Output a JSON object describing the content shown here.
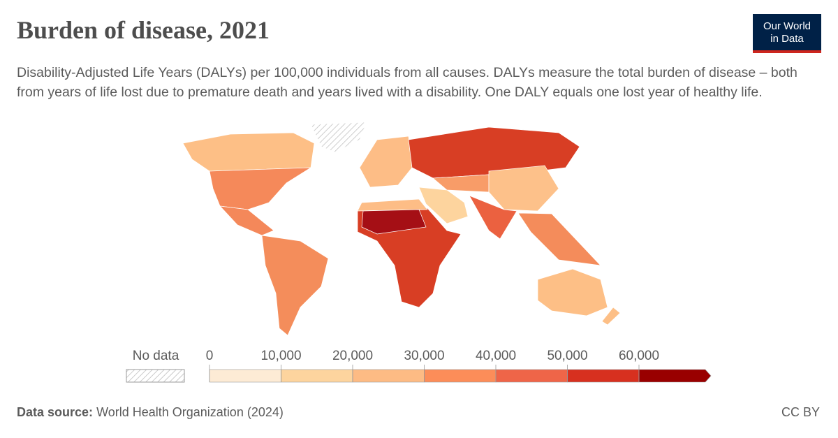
{
  "header": {
    "title": "Burden of disease, 2021",
    "subtitle": "Disability-Adjusted Life Years (DALYs) per 100,000 individuals from all causes. DALYs measure the total burden of disease – both from years of life lost due to premature death and years lived with a disability. One DALY equals one lost year of healthy life.",
    "logo": [
      "Our World",
      "in Data"
    ]
  },
  "chart_data": {
    "type": "map",
    "legend": {
      "no_data_label": "No data",
      "ticks": [
        0,
        {
          "value": 10000,
          "label": "10,000"
        },
        {
          "value": 20000,
          "label": "20,000"
        },
        {
          "value": 30000,
          "label": "30,000"
        },
        {
          "value": 40000,
          "label": "40,000"
        },
        {
          "value": 50000,
          "label": "50,000"
        },
        {
          "value": 60000,
          "label": "60,000"
        }
      ],
      "colors": [
        "#fdebd5",
        "#fdd49e",
        "#fdbb84",
        "#fc8d59",
        "#ef6548",
        "#d7301f",
        "#990000"
      ]
    }
  },
  "footer": {
    "source_label": "Data source:",
    "source": "World Health Organization (2024)",
    "license": "CC BY"
  }
}
